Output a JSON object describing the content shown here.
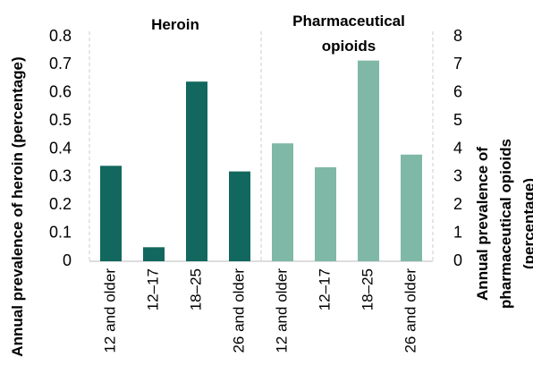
{
  "chart_data": {
    "type": "bar",
    "categories": [
      "12 and older",
      "12–17",
      "18–25",
      "26 and older",
      "12 and older",
      "12–17",
      "18–25",
      "26 and older"
    ],
    "series": [
      {
        "name": "Heroin",
        "color": "#12685e",
        "axis": "y",
        "values": [
          0.34,
          0.05,
          0.64,
          0.32,
          null,
          null,
          null,
          null
        ]
      },
      {
        "name": "Pharmaceutical opioids",
        "color": "#7fb8a6",
        "axis": "y2",
        "values": [
          null,
          null,
          null,
          null,
          4.2,
          3.35,
          7.15,
          3.8
        ]
      }
    ],
    "ylabel": "Annual prevalence of heroin (percentage)",
    "y2label": "Annual prevalence of pharmaceutical opioids (percentage)",
    "ylim": [
      0,
      0.8
    ],
    "yticks": [
      0,
      0.1,
      0.2,
      0.3,
      0.4,
      0.5,
      0.6,
      0.7,
      0.8
    ],
    "y2lim": [
      0,
      8
    ],
    "y2ticks": [
      0,
      1,
      2,
      3,
      4,
      5,
      6,
      7,
      8
    ]
  }
}
